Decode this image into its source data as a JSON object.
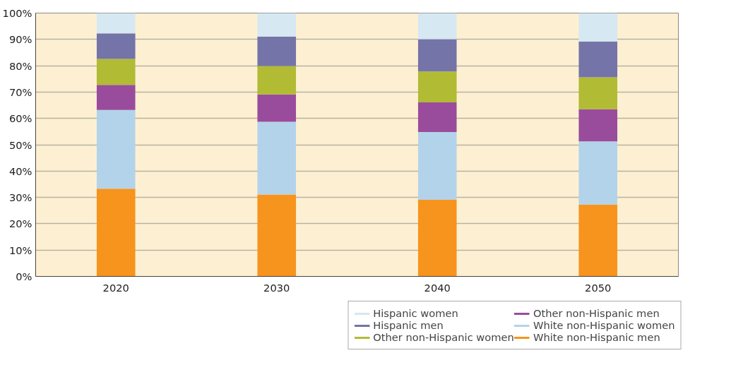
{
  "chart_data": {
    "type": "bar",
    "stacked": true,
    "categories": [
      "2020",
      "2030",
      "2040",
      "2050"
    ],
    "series": [
      {
        "name": "White non-Hispanic men",
        "color": "#f7941d",
        "values": [
          33.3,
          31.1,
          29.1,
          27.3
        ]
      },
      {
        "name": "White non-Hispanic women",
        "color": "#b3d3ea",
        "values": [
          29.9,
          27.6,
          25.7,
          24.0
        ]
      },
      {
        "name": "Other non-Hispanic men",
        "color": "#9a4c9c",
        "values": [
          9.5,
          10.4,
          11.3,
          12.2
        ]
      },
      {
        "name": "Other non-Hispanic women",
        "color": "#b1bb34",
        "values": [
          9.9,
          10.8,
          11.7,
          12.1
        ]
      },
      {
        "name": "Hispanic men",
        "color": "#7474a8",
        "values": [
          9.7,
          11.2,
          12.3,
          13.6
        ]
      },
      {
        "name": "Hispanic women",
        "color": "#d6e8f1",
        "values": [
          7.7,
          8.9,
          9.9,
          10.8
        ]
      }
    ],
    "ylim": [
      0,
      100
    ],
    "yticks": [
      {
        "value": 0,
        "label": "0%"
      },
      {
        "value": 10,
        "label": "10%"
      },
      {
        "value": 20,
        "label": "20%"
      },
      {
        "value": 30,
        "label": "30%"
      },
      {
        "value": 40,
        "label": "40%"
      },
      {
        "value": 50,
        "label": "50%"
      },
      {
        "value": 60,
        "label": "60%"
      },
      {
        "value": 70,
        "label": "70%"
      },
      {
        "value": 80,
        "label": "80%"
      },
      {
        "value": 90,
        "label": "90%"
      },
      {
        "value": 100,
        "label": "100%"
      }
    ],
    "grid": "y",
    "legend": "bottom right"
  }
}
